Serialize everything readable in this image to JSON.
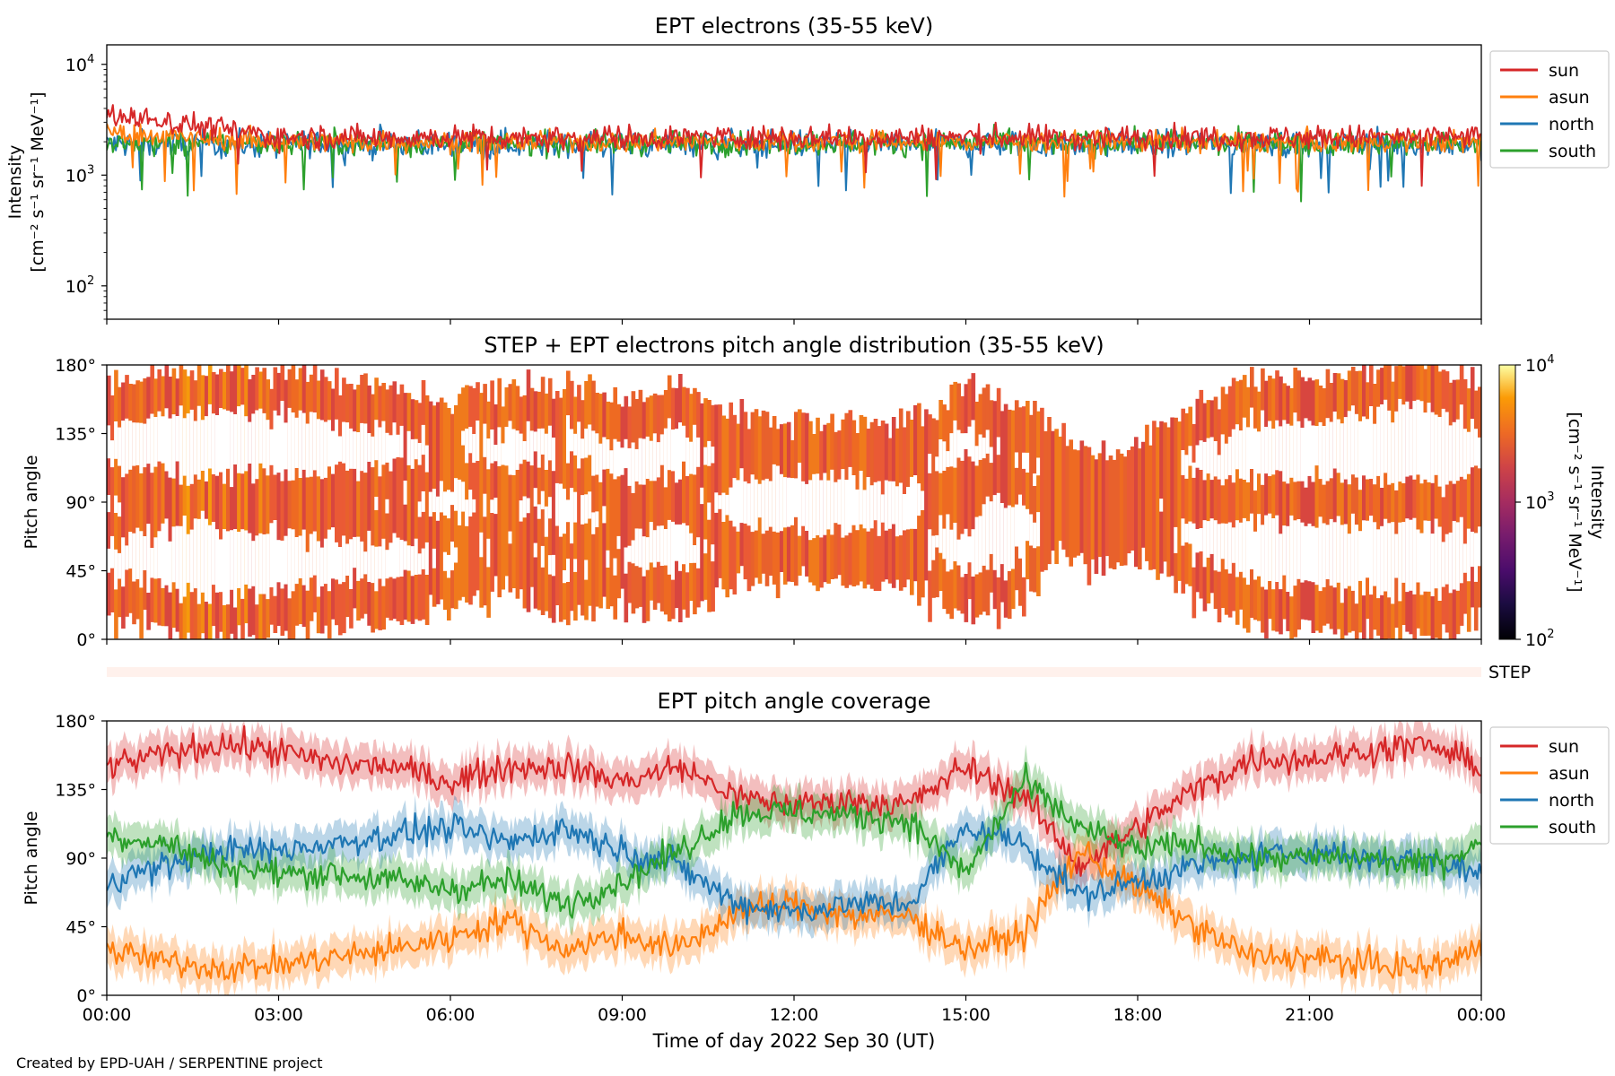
{
  "footer": {
    "credit": "Created by EPD-UAH / SERPENTINE project"
  },
  "colors": {
    "sun": "#d62728",
    "asun": "#ff7f0e",
    "north": "#1f77b4",
    "south": "#2ca02c",
    "step_band": "#fff1ec"
  },
  "chart_data": [
    {
      "type": "line",
      "title": "EPT electrons (35-55 keV)",
      "ylabel_line1": "Intensity",
      "ylabel_line2": "[cm⁻² s⁻¹ sr⁻¹ MeV⁻¹]",
      "yscale": "log",
      "ylim": [
        50,
        15000
      ],
      "yticks": [
        {
          "value": 100,
          "base": "10",
          "exp": "2"
        },
        {
          "value": 1000,
          "base": "10",
          "exp": "3"
        },
        {
          "value": 10000,
          "base": "10",
          "exp": "4"
        }
      ],
      "xlim_hours": [
        0,
        24
      ],
      "legend_position": "outside right, top",
      "series": [
        {
          "name": "sun",
          "color": "#d62728",
          "approx_level": 2200,
          "early_level": 3500,
          "spread": 0.18
        },
        {
          "name": "asun",
          "color": "#ff7f0e",
          "approx_level": 2000,
          "early_level": 2400,
          "spread": 0.16
        },
        {
          "name": "north",
          "color": "#1f77b4",
          "approx_level": 1900,
          "early_level": 1900,
          "spread": 0.2
        },
        {
          "name": "south",
          "color": "#2ca02c",
          "approx_level": 1950,
          "early_level": 1900,
          "spread": 0.18
        }
      ]
    },
    {
      "type": "heatmap",
      "title": "STEP + EPT electrons pitch angle distribution (35-55 keV)",
      "ylabel": "Pitch angle",
      "ylim": [
        0,
        180
      ],
      "yticks": [
        "0°",
        "45°",
        "90°",
        "135°",
        "180°"
      ],
      "ytick_values": [
        0,
        45,
        90,
        135,
        180
      ],
      "colorbar": {
        "label_line1": "Intensity",
        "label_line2": "[cm⁻² s⁻¹ sr⁻¹ MeV⁻¹]",
        "scale": "log",
        "range": [
          100,
          10000
        ],
        "ticks": [
          {
            "value": 100,
            "base": "10",
            "exp": "2"
          },
          {
            "value": 1000,
            "base": "10",
            "exp": "3"
          },
          {
            "value": 10000,
            "base": "10",
            "exp": "4"
          }
        ]
      },
      "step_band_label": "STEP",
      "approx_intensity": 2000
    },
    {
      "type": "line",
      "title": "EPT pitch angle coverage",
      "ylabel": "Pitch angle",
      "ylim": [
        0,
        180
      ],
      "yticks": [
        "0°",
        "45°",
        "90°",
        "135°",
        "180°"
      ],
      "ytick_values": [
        0,
        45,
        90,
        135,
        180
      ],
      "xlabel": "Time of day 2022 Sep 30 (UT)",
      "xticks": [
        "00:00",
        "03:00",
        "06:00",
        "09:00",
        "12:00",
        "15:00",
        "18:00",
        "21:00",
        "00:00"
      ],
      "xtick_hours": [
        0,
        3,
        6,
        9,
        12,
        15,
        18,
        21,
        24
      ],
      "legend_position": "outside right, top",
      "time_hours": [
        0,
        1,
        2,
        3,
        4,
        5,
        6,
        7,
        8,
        9,
        10,
        11,
        12,
        13,
        14,
        15,
        16,
        17,
        18,
        19,
        20,
        21,
        22,
        23,
        24
      ],
      "series": [
        {
          "name": "sun",
          "color": "#d62728",
          "values": [
            150,
            158,
            165,
            160,
            152,
            150,
            140,
            150,
            150,
            140,
            150,
            130,
            125,
            128,
            125,
            150,
            130,
            85,
            110,
            135,
            155,
            155,
            160,
            165,
            150
          ]
        },
        {
          "name": "asun",
          "color": "#ff7f0e",
          "values": [
            30,
            22,
            18,
            20,
            25,
            30,
            38,
            50,
            30,
            40,
            30,
            55,
            60,
            52,
            52,
            30,
            40,
            95,
            70,
            45,
            25,
            25,
            20,
            18,
            30
          ]
        },
        {
          "name": "north",
          "color": "#1f77b4",
          "values": [
            75,
            85,
            95,
            95,
            100,
            105,
            110,
            100,
            110,
            95,
            85,
            60,
            55,
            60,
            60,
            110,
            100,
            65,
            75,
            85,
            90,
            95,
            90,
            90,
            80
          ]
        },
        {
          "name": "south",
          "color": "#2ca02c",
          "values": [
            105,
            100,
            85,
            80,
            80,
            75,
            70,
            75,
            60,
            75,
            95,
            120,
            120,
            118,
            115,
            80,
            140,
            110,
            95,
            100,
            90,
            90,
            90,
            85,
            100
          ]
        }
      ],
      "shaded_band_halfwidth_deg": 12
    }
  ]
}
